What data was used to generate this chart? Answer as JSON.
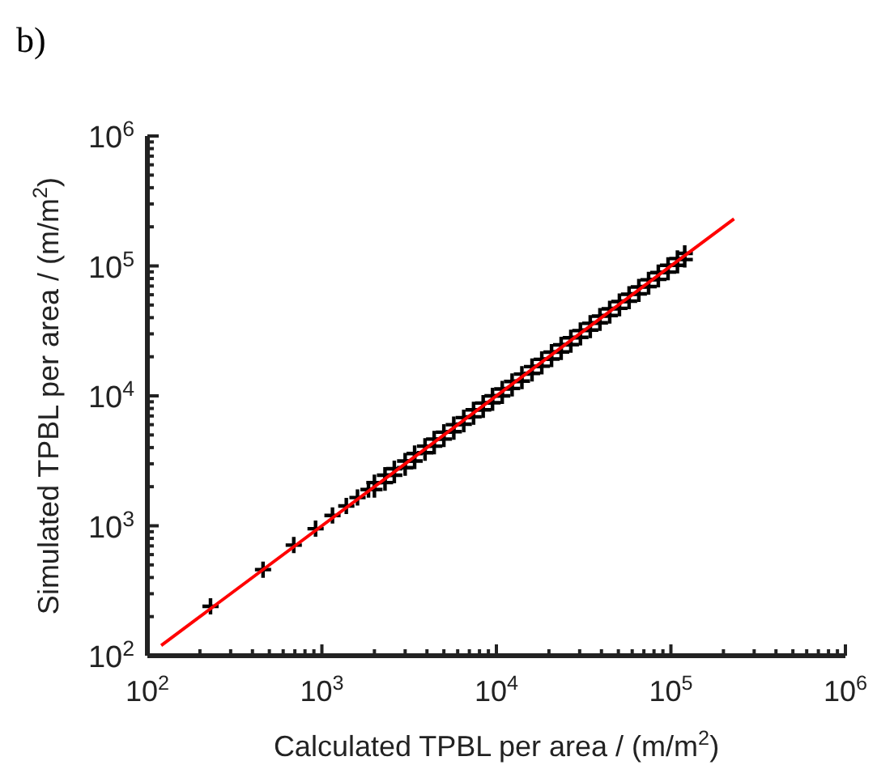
{
  "chart_data": {
    "type": "scatter",
    "title": "b)",
    "xlabel": "Calculated TPBL per area / (m/m$^{2}$)",
    "ylabel": "Simulated TPBL per area / (m/m$^{2}$)",
    "log": "xy",
    "xlim": [
      100,
      1000000
    ],
    "ylim": [
      100,
      1000000
    ],
    "xticks": [
      {
        "value": 100,
        "label": "10$^{2}$"
      },
      {
        "value": 200,
        "label": null
      },
      {
        "value": 300,
        "label": null
      },
      {
        "value": 400,
        "label": null
      },
      {
        "value": 500,
        "label": null
      },
      {
        "value": 600,
        "label": null
      },
      {
        "value": 700,
        "label": null
      },
      {
        "value": 800,
        "label": null
      },
      {
        "value": 900,
        "label": null
      },
      {
        "value": 1000,
        "label": "10$^{3}$"
      },
      {
        "value": 2000,
        "label": null
      },
      {
        "value": 3000,
        "label": null
      },
      {
        "value": 4000,
        "label": null
      },
      {
        "value": 5000,
        "label": null
      },
      {
        "value": 6000,
        "label": null
      },
      {
        "value": 7000,
        "label": null
      },
      {
        "value": 8000,
        "label": null
      },
      {
        "value": 9000,
        "label": null
      },
      {
        "value": 10000,
        "label": "10$^{4}$"
      },
      {
        "value": 20000,
        "label": null
      },
      {
        "value": 30000,
        "label": null
      },
      {
        "value": 40000,
        "label": null
      },
      {
        "value": 50000,
        "label": null
      },
      {
        "value": 60000,
        "label": null
      },
      {
        "value": 70000,
        "label": null
      },
      {
        "value": 80000,
        "label": null
      },
      {
        "value": 90000,
        "label": null
      },
      {
        "value": 100000,
        "label": "10$^{5}$"
      },
      {
        "value": 200000,
        "label": null
      },
      {
        "value": 300000,
        "label": null
      },
      {
        "value": 400000,
        "label": null
      },
      {
        "value": 500000,
        "label": null
      },
      {
        "value": 600000,
        "label": null
      },
      {
        "value": 700000,
        "label": null
      },
      {
        "value": 800000,
        "label": null
      },
      {
        "value": 900000,
        "label": null
      },
      {
        "value": 1000000,
        "label": "10$^{6}$"
      }
    ],
    "yticks": [
      {
        "value": 100,
        "label": "10$^{2}$"
      },
      {
        "value": 200,
        "label": null
      },
      {
        "value": 300,
        "label": null
      },
      {
        "value": 400,
        "label": null
      },
      {
        "value": 500,
        "label": null
      },
      {
        "value": 600,
        "label": null
      },
      {
        "value": 700,
        "label": null
      },
      {
        "value": 800,
        "label": null
      },
      {
        "value": 900,
        "label": null
      },
      {
        "value": 1000,
        "label": "10$^{3}$"
      },
      {
        "value": 2000,
        "label": null
      },
      {
        "value": 3000,
        "label": null
      },
      {
        "value": 4000,
        "label": null
      },
      {
        "value": 5000,
        "label": null
      },
      {
        "value": 6000,
        "label": null
      },
      {
        "value": 7000,
        "label": null
      },
      {
        "value": 8000,
        "label": null
      },
      {
        "value": 9000,
        "label": null
      },
      {
        "value": 10000,
        "label": "10$^{4}$"
      },
      {
        "value": 20000,
        "label": null
      },
      {
        "value": 30000,
        "label": null
      },
      {
        "value": 40000,
        "label": null
      },
      {
        "value": 50000,
        "label": null
      },
      {
        "value": 60000,
        "label": null
      },
      {
        "value": 70000,
        "label": null
      },
      {
        "value": 80000,
        "label": null
      },
      {
        "value": 90000,
        "label": null
      },
      {
        "value": 100000,
        "label": "10$^{5}$"
      },
      {
        "value": 200000,
        "label": null
      },
      {
        "value": 300000,
        "label": null
      },
      {
        "value": 400000,
        "label": null
      },
      {
        "value": 500000,
        "label": null
      },
      {
        "value": 600000,
        "label": null
      },
      {
        "value": 700000,
        "label": null
      },
      {
        "value": 800000,
        "label": null
      },
      {
        "value": 900000,
        "label": null
      },
      {
        "value": 1000000,
        "label": "10$^{6}$"
      }
    ],
    "grid": false,
    "series": [
      {
        "color": "#000000",
        "marker": "cross",
        "x": [
          230,
          460,
          690,
          920,
          1150,
          1380,
          1600,
          1850,
          2000,
          2000,
          2300,
          2300,
          2600,
          2600,
          3000,
          3000,
          3400,
          3400,
          3900,
          3900,
          4400,
          4400,
          5000,
          5000,
          5700,
          5700,
          6500,
          6500,
          7400,
          7400,
          8400,
          8400,
          9500,
          9500,
          10800,
          10800,
          12300,
          12300,
          14000,
          14000,
          16000,
          16000,
          18200,
          18200,
          20700,
          20700,
          23500,
          23500,
          26700,
          26700,
          30300,
          30300,
          34500,
          34500,
          39200,
          39200,
          44600,
          44600,
          50700,
          50700,
          57600,
          57600,
          65500,
          65500,
          74500,
          74500,
          84700,
          84700,
          96300,
          96300,
          109000,
          109000,
          120000,
          120000
        ],
        "values": [
          240,
          460,
          710,
          950,
          1200,
          1420,
          1650,
          1900,
          1900,
          2150,
          2150,
          2450,
          2450,
          2750,
          2800,
          3150,
          3150,
          3600,
          3650,
          4100,
          4100,
          4650,
          4650,
          5250,
          5300,
          6000,
          6050,
          6800,
          6900,
          7800,
          7800,
          8800,
          8850,
          10000,
          10000,
          11300,
          11400,
          12900,
          13000,
          14700,
          14900,
          16800,
          16900,
          19100,
          19200,
          21700,
          21800,
          24700,
          24800,
          28000,
          28200,
          31800,
          32100,
          36200,
          36500,
          41100,
          41500,
          46800,
          47200,
          53200,
          53600,
          60500,
          61000,
          68800,
          69300,
          78200,
          78800,
          88900,
          89600,
          101000,
          101000,
          114000,
          112000,
          125000
        ]
      },
      {
        "type": "line",
        "color": "#ff0000",
        "line_style": "solid",
        "x": [
          120,
          230000
        ],
        "values": [
          120,
          230000
        ]
      }
    ]
  }
}
